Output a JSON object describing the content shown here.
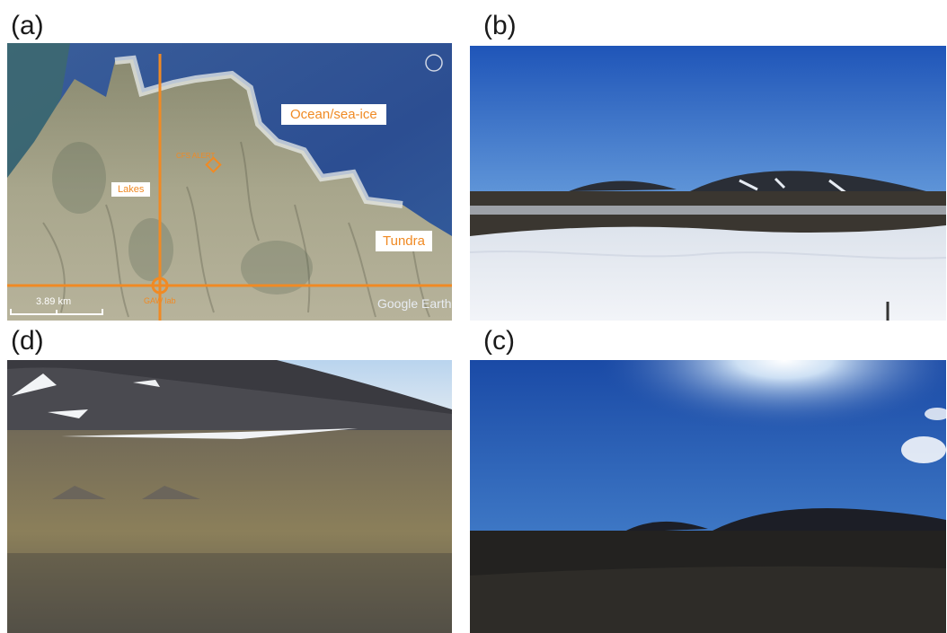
{
  "panels": {
    "a": {
      "label": "(a)"
    },
    "b": {
      "label": "(b)"
    },
    "c": {
      "label": "(c)"
    },
    "d": {
      "label": "(d)"
    }
  },
  "map": {
    "ocean_label": "Ocean/sea-ice",
    "lakes_label": "Lakes",
    "tundra_label": "Tundra",
    "site_label": "CFS ALERT",
    "lab_label": "GAW lab",
    "scale_label": "3.89 km",
    "watermark": "Google Earth",
    "accent": "#f08a24"
  }
}
